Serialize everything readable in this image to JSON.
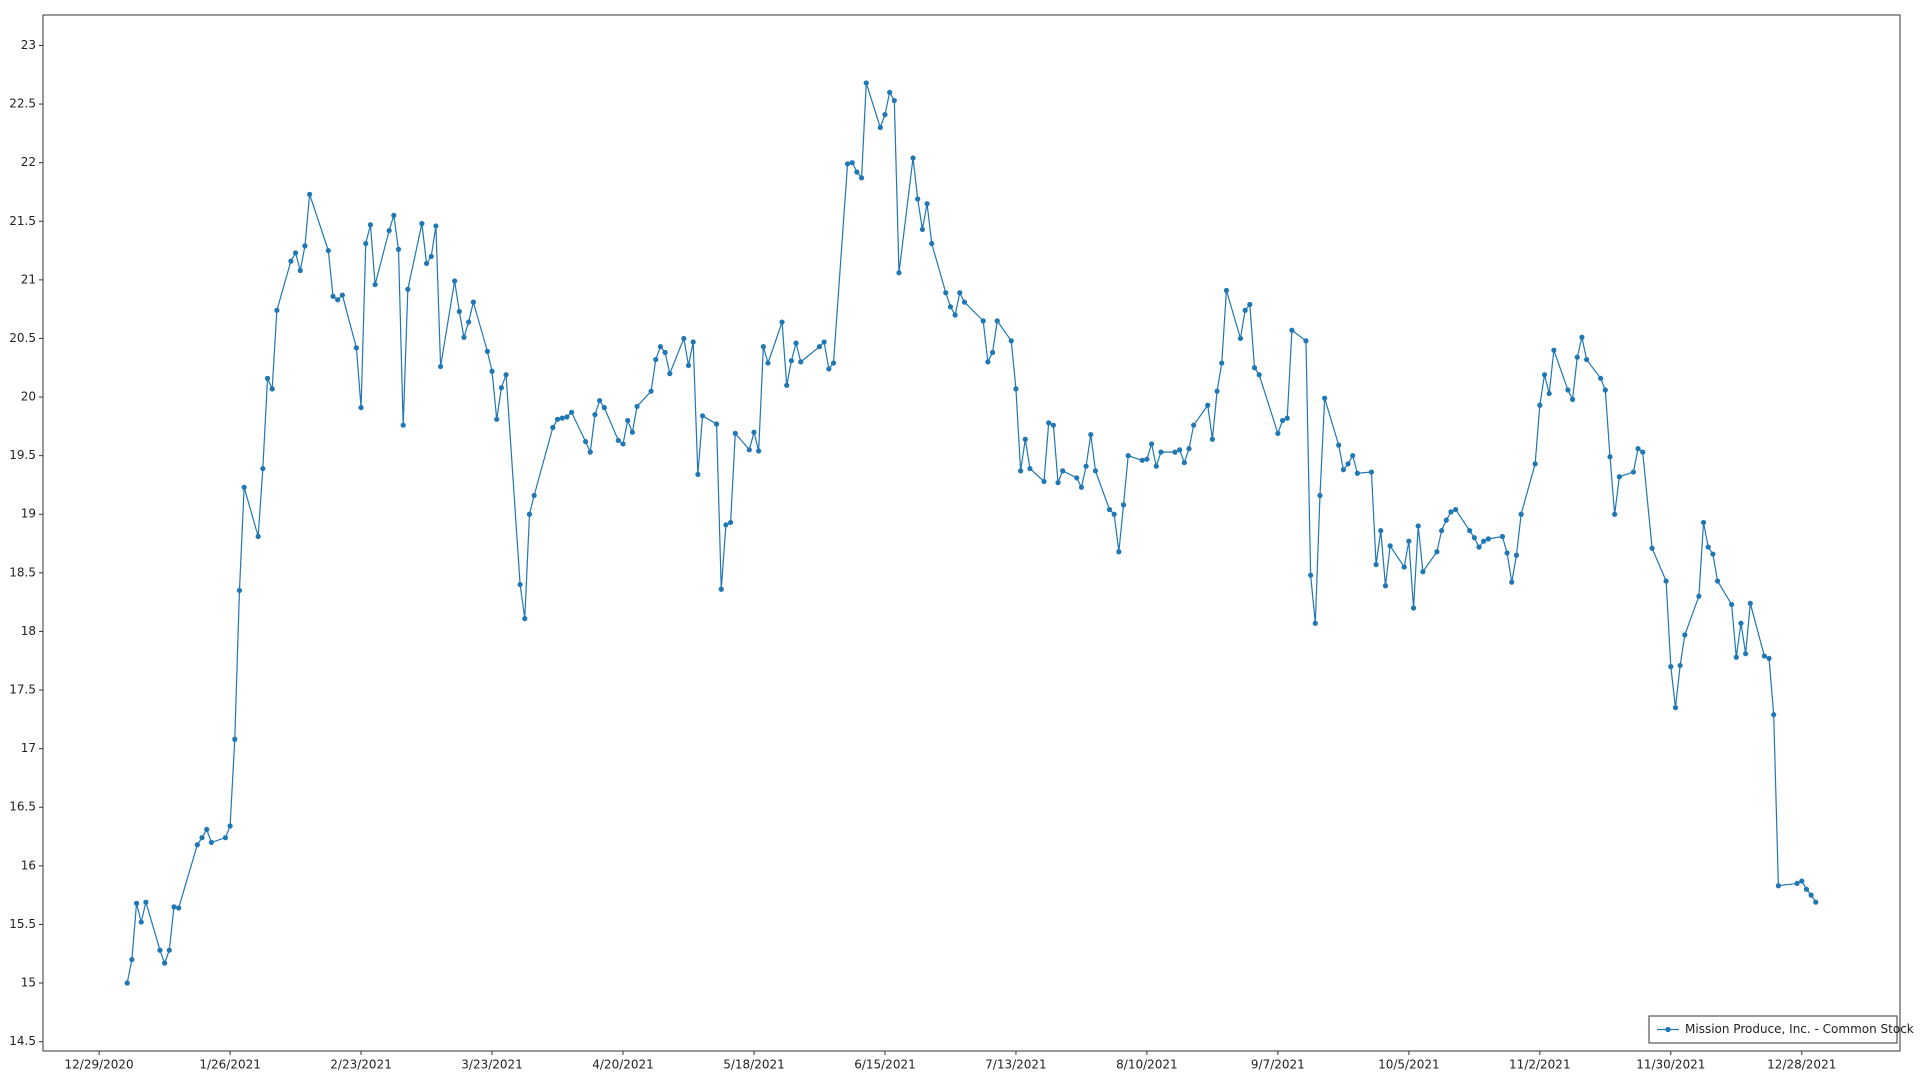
{
  "chart_data": {
    "type": "line",
    "x": [
      "2021-01-04",
      "2021-01-05",
      "2021-01-06",
      "2021-01-07",
      "2021-01-08",
      "2021-01-11",
      "2021-01-12",
      "2021-01-13",
      "2021-01-14",
      "2021-01-15",
      "2021-01-19",
      "2021-01-20",
      "2021-01-21",
      "2021-01-22",
      "2021-01-25",
      "2021-01-26",
      "2021-01-27",
      "2021-01-28",
      "2021-01-29",
      "2021-02-01",
      "2021-02-02",
      "2021-02-03",
      "2021-02-04",
      "2021-02-05",
      "2021-02-08",
      "2021-02-09",
      "2021-02-10",
      "2021-02-11",
      "2021-02-12",
      "2021-02-16",
      "2021-02-17",
      "2021-02-18",
      "2021-02-19",
      "2021-02-22",
      "2021-02-23",
      "2021-02-24",
      "2021-02-25",
      "2021-02-26",
      "2021-03-01",
      "2021-03-02",
      "2021-03-03",
      "2021-03-04",
      "2021-03-05",
      "2021-03-08",
      "2021-03-09",
      "2021-03-10",
      "2021-03-11",
      "2021-03-12",
      "2021-03-15",
      "2021-03-16",
      "2021-03-17",
      "2021-03-18",
      "2021-03-19",
      "2021-03-22",
      "2021-03-23",
      "2021-03-24",
      "2021-03-25",
      "2021-03-26",
      "2021-03-29",
      "2021-03-30",
      "2021-03-31",
      "2021-04-01",
      "2021-04-05",
      "2021-04-06",
      "2021-04-07",
      "2021-04-08",
      "2021-04-09",
      "2021-04-12",
      "2021-04-13",
      "2021-04-14",
      "2021-04-15",
      "2021-04-16",
      "2021-04-19",
      "2021-04-20",
      "2021-04-21",
      "2021-04-22",
      "2021-04-23",
      "2021-04-26",
      "2021-04-27",
      "2021-04-28",
      "2021-04-29",
      "2021-04-30",
      "2021-05-03",
      "2021-05-04",
      "2021-05-05",
      "2021-05-06",
      "2021-05-07",
      "2021-05-10",
      "2021-05-11",
      "2021-05-12",
      "2021-05-13",
      "2021-05-14",
      "2021-05-17",
      "2021-05-18",
      "2021-05-19",
      "2021-05-20",
      "2021-05-21",
      "2021-05-24",
      "2021-05-25",
      "2021-05-26",
      "2021-05-27",
      "2021-05-28",
      "2021-06-01",
      "2021-06-02",
      "2021-06-03",
      "2021-06-04",
      "2021-06-07",
      "2021-06-08",
      "2021-06-09",
      "2021-06-10",
      "2021-06-11",
      "2021-06-14",
      "2021-06-15",
      "2021-06-16",
      "2021-06-17",
      "2021-06-18",
      "2021-06-21",
      "2021-06-22",
      "2021-06-23",
      "2021-06-24",
      "2021-06-25",
      "2021-06-28",
      "2021-06-29",
      "2021-06-30",
      "2021-07-01",
      "2021-07-02",
      "2021-07-06",
      "2021-07-07",
      "2021-07-08",
      "2021-07-09",
      "2021-07-12",
      "2021-07-13",
      "2021-07-14",
      "2021-07-15",
      "2021-07-16",
      "2021-07-19",
      "2021-07-20",
      "2021-07-21",
      "2021-07-22",
      "2021-07-23",
      "2021-07-26",
      "2021-07-27",
      "2021-07-28",
      "2021-07-29",
      "2021-07-30",
      "2021-08-02",
      "2021-08-03",
      "2021-08-04",
      "2021-08-05",
      "2021-08-06",
      "2021-08-09",
      "2021-08-10",
      "2021-08-11",
      "2021-08-12",
      "2021-08-13",
      "2021-08-16",
      "2021-08-17",
      "2021-08-18",
      "2021-08-19",
      "2021-08-20",
      "2021-08-23",
      "2021-08-24",
      "2021-08-25",
      "2021-08-26",
      "2021-08-27",
      "2021-08-30",
      "2021-08-31",
      "2021-09-01",
      "2021-09-02",
      "2021-09-03",
      "2021-09-07",
      "2021-09-08",
      "2021-09-09",
      "2021-09-10",
      "2021-09-13",
      "2021-09-14",
      "2021-09-15",
      "2021-09-16",
      "2021-09-17",
      "2021-09-20",
      "2021-09-21",
      "2021-09-22",
      "2021-09-23",
      "2021-09-24",
      "2021-09-27",
      "2021-09-28",
      "2021-09-29",
      "2021-09-30",
      "2021-10-01",
      "2021-10-04",
      "2021-10-05",
      "2021-10-06",
      "2021-10-07",
      "2021-10-08",
      "2021-10-11",
      "2021-10-12",
      "2021-10-13",
      "2021-10-14",
      "2021-10-15",
      "2021-10-18",
      "2021-10-19",
      "2021-10-20",
      "2021-10-21",
      "2021-10-22",
      "2021-10-25",
      "2021-10-26",
      "2021-10-27",
      "2021-10-28",
      "2021-10-29",
      "2021-11-01",
      "2021-11-02",
      "2021-11-03",
      "2021-11-04",
      "2021-11-05",
      "2021-11-08",
      "2021-11-09",
      "2021-11-10",
      "2021-11-11",
      "2021-11-12",
      "2021-11-15",
      "2021-11-16",
      "2021-11-17",
      "2021-11-18",
      "2021-11-19",
      "2021-11-22",
      "2021-11-23",
      "2021-11-24",
      "2021-11-26",
      "2021-11-29",
      "2021-11-30",
      "2021-12-01",
      "2021-12-02",
      "2021-12-03",
      "2021-12-06",
      "2021-12-07",
      "2021-12-08",
      "2021-12-09",
      "2021-12-10",
      "2021-12-13",
      "2021-12-14",
      "2021-12-15",
      "2021-12-16",
      "2021-12-17",
      "2021-12-20",
      "2021-12-21",
      "2021-12-22",
      "2021-12-23",
      "2021-12-27",
      "2021-12-28",
      "2021-12-29",
      "2021-12-30",
      "2021-12-31"
    ],
    "series": [
      {
        "name": "Mission Produce, Inc. - Common Stock",
        "color": "#1f77b4",
        "values": [
          15.0,
          15.2,
          15.68,
          15.52,
          15.69,
          15.28,
          15.17,
          15.28,
          15.65,
          15.64,
          16.18,
          16.24,
          16.31,
          16.2,
          16.24,
          16.34,
          17.08,
          18.35,
          19.23,
          18.81,
          19.39,
          20.16,
          20.07,
          20.74,
          21.16,
          21.23,
          21.08,
          21.29,
          21.73,
          21.25,
          20.86,
          20.83,
          20.87,
          20.42,
          19.91,
          21.31,
          21.47,
          20.96,
          21.42,
          21.55,
          21.26,
          19.76,
          20.92,
          21.48,
          21.14,
          21.2,
          21.46,
          20.26,
          20.99,
          20.73,
          20.51,
          20.64,
          20.81,
          20.39,
          20.22,
          19.81,
          20.08,
          20.19,
          18.4,
          18.11,
          19.0,
          19.16,
          19.74,
          19.81,
          19.82,
          19.83,
          19.87,
          19.62,
          19.53,
          19.85,
          19.97,
          19.91,
          19.63,
          19.6,
          19.8,
          19.7,
          19.92,
          20.05,
          20.32,
          20.43,
          20.38,
          20.2,
          20.5,
          20.27,
          20.47,
          19.34,
          19.84,
          19.77,
          18.36,
          18.91,
          18.93,
          19.69,
          19.55,
          19.7,
          19.54,
          20.43,
          20.29,
          20.64,
          20.1,
          20.31,
          20.46,
          20.3,
          20.43,
          20.47,
          20.24,
          20.29,
          21.99,
          22.0,
          21.92,
          21.87,
          22.68,
          22.3,
          22.41,
          22.6,
          22.53,
          21.06,
          22.04,
          21.69,
          21.43,
          21.65,
          21.31,
          20.89,
          20.77,
          20.7,
          20.89,
          20.81,
          20.65,
          20.3,
          20.38,
          20.65,
          20.48,
          20.07,
          19.37,
          19.64,
          19.39,
          19.28,
          19.78,
          19.76,
          19.27,
          19.37,
          19.31,
          19.23,
          19.41,
          19.68,
          19.37,
          19.04,
          19.0,
          18.68,
          19.08,
          19.5,
          19.46,
          19.47,
          19.6,
          19.41,
          19.53,
          19.53,
          19.55,
          19.44,
          19.56,
          19.76,
          19.93,
          19.64,
          20.05,
          20.29,
          20.91,
          20.5,
          20.74,
          20.79,
          20.25,
          20.19,
          19.69,
          19.8,
          19.82,
          20.57,
          20.48,
          18.48,
          18.07,
          19.16,
          19.99,
          19.59,
          19.38,
          19.43,
          19.5,
          19.35,
          19.36,
          18.57,
          18.86,
          18.39,
          18.73,
          18.55,
          18.77,
          18.2,
          18.9,
          18.51,
          18.68,
          18.86,
          18.95,
          19.02,
          19.04,
          18.86,
          18.8,
          18.72,
          18.77,
          18.79,
          18.81,
          18.67,
          18.42,
          18.65,
          19.0,
          19.43,
          19.93,
          20.19,
          20.03,
          20.4,
          20.06,
          19.98,
          20.34,
          20.51,
          20.32,
          20.16,
          20.06,
          19.49,
          19.0,
          19.32,
          19.36,
          19.56,
          19.53,
          18.71,
          18.43,
          17.7,
          17.35,
          17.71,
          17.97,
          18.3,
          18.93,
          18.72,
          18.66,
          18.43,
          18.23,
          17.78,
          18.07,
          17.81,
          18.24,
          17.79,
          17.77,
          17.29,
          15.83,
          15.85,
          15.87,
          15.8,
          15.75,
          15.69
        ]
      }
    ],
    "xlim": [
      "2020-12-17",
      "2022-01-18"
    ],
    "xticks": [
      {
        "value": "2020-12-29",
        "label": "12/29/2020"
      },
      {
        "value": "2021-01-26",
        "label": "1/26/2021"
      },
      {
        "value": "2021-02-23",
        "label": "2/23/2021"
      },
      {
        "value": "2021-03-23",
        "label": "3/23/2021"
      },
      {
        "value": "2021-04-20",
        "label": "4/20/2021"
      },
      {
        "value": "2021-05-18",
        "label": "5/18/2021"
      },
      {
        "value": "2021-06-15",
        "label": "6/15/2021"
      },
      {
        "value": "2021-07-13",
        "label": "7/13/2021"
      },
      {
        "value": "2021-08-10",
        "label": "8/10/2021"
      },
      {
        "value": "2021-09-07",
        "label": "9/7/2021"
      },
      {
        "value": "2021-10-05",
        "label": "10/5/2021"
      },
      {
        "value": "2021-11-02",
        "label": "11/2/2021"
      },
      {
        "value": "2021-11-30",
        "label": "11/30/2021"
      },
      {
        "value": "2021-12-28",
        "label": "12/28/2021"
      }
    ],
    "ylim": [
      14.42,
      23.26
    ],
    "yticks": [
      14.5,
      15,
      15.5,
      16,
      16.5,
      17,
      17.5,
      18,
      18.5,
      19,
      19.5,
      20,
      20.5,
      21,
      21.5,
      22,
      22.5,
      23
    ],
    "grid": true,
    "legend": "lower right"
  }
}
